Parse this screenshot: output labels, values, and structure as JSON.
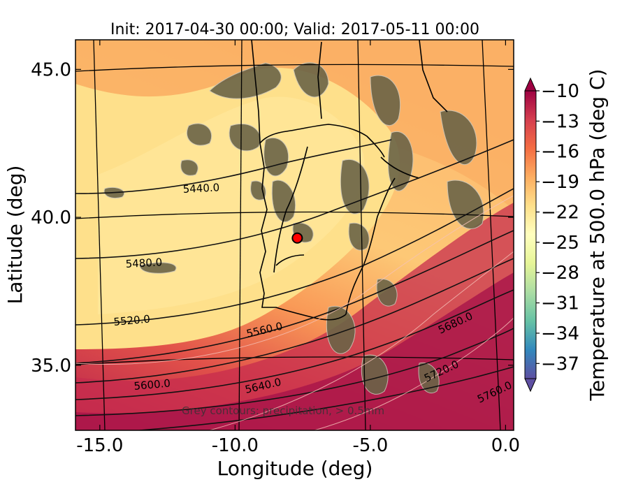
{
  "title": "Init: 2017-04-30 00:00; Valid: 2017-05-11 00:00",
  "xaxis": {
    "label": "Longitude (deg)",
    "ticks": [
      {
        "value": -15.0,
        "label": "-15.0"
      },
      {
        "value": -10.0,
        "label": "-10.0"
      },
      {
        "value": -5.0,
        "label": "-5.0"
      },
      {
        "value": 0.0,
        "label": "0.0"
      }
    ],
    "range": [
      -15.9,
      0.3
    ]
  },
  "yaxis": {
    "label": "Latitude (deg)",
    "ticks": [
      {
        "value": 35.0,
        "label": "35.0"
      },
      {
        "value": 40.0,
        "label": "40.0"
      },
      {
        "value": 45.0,
        "label": "45.0"
      }
    ],
    "range": [
      32.8,
      46.0
    ]
  },
  "colorbar": {
    "label": "Temperature at 500.0 hPa (deg C)",
    "ticks": [
      "−10",
      "−13",
      "−16",
      "−19",
      "−22",
      "−25",
      "−28",
      "−31",
      "−34",
      "−37"
    ],
    "range": [
      -38.5,
      -10
    ],
    "extend": "both",
    "colors": [
      "#5e4fa2",
      "#3288bd",
      "#66c2a5",
      "#abdda4",
      "#e6f598",
      "#ffffbf",
      "#fee08b",
      "#fdae61",
      "#f46d43",
      "#d53e4f",
      "#9e0142"
    ]
  },
  "contour_labels": [
    {
      "text": "5440.0"
    },
    {
      "text": "5480.0"
    },
    {
      "text": "5520.0"
    },
    {
      "text": "5560.0"
    },
    {
      "text": "5600.0"
    },
    {
      "text": "5640.0"
    },
    {
      "text": "5680.0"
    },
    {
      "text": "5720.0"
    },
    {
      "text": "5760.0"
    }
  ],
  "annotation": "Grey contours: precipitation, > 0.5mm",
  "marker": {
    "lon": -7.7,
    "lat": 39.3,
    "color": "#ff0000"
  }
}
